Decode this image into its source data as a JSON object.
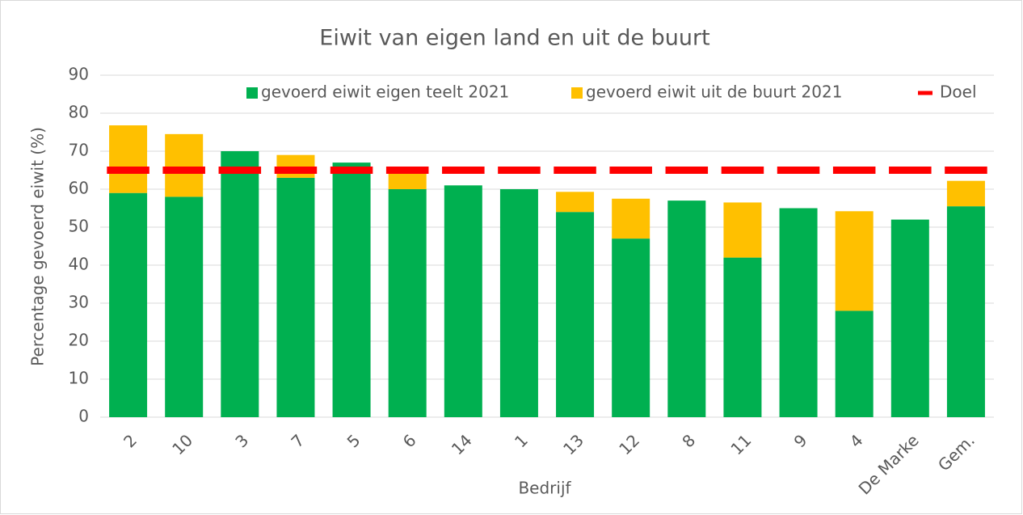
{
  "chart_data": {
    "type": "bar",
    "stacked": true,
    "title": "Eiwit van eigen land en uit de buurt",
    "x_label": "Bedrijf",
    "y_label": "Percentage gevoerd eiwit (%)",
    "categories": [
      "2",
      "10",
      "3",
      "7",
      "5",
      "6",
      "14",
      "1",
      "13",
      "12",
      "8",
      "11",
      "9",
      "4",
      "De Marke",
      "Gem."
    ],
    "series": [
      {
        "name": "gevoerd eiwit eigen teelt 2021",
        "color": "#00b050",
        "values": [
          59,
          58,
          70,
          63,
          67,
          60,
          61,
          60,
          54,
          47,
          57,
          42,
          55,
          28,
          52,
          55.5
        ]
      },
      {
        "name": "gevoerd eiwit uit de buurt 2021",
        "color": "#ffc000",
        "values": [
          17.8,
          16.5,
          0,
          6,
          0,
          4.5,
          0,
          0,
          5.3,
          10.5,
          0,
          14.5,
          0,
          26.2,
          0,
          6.7
        ]
      },
      {
        "name": "Doel",
        "color": "#ff0000",
        "type": "line",
        "dashed": true,
        "values": [
          65,
          65,
          65,
          65,
          65,
          65,
          65,
          65,
          65,
          65,
          65,
          65,
          65,
          65,
          65,
          65
        ]
      }
    ],
    "ylim": [
      0,
      90
    ],
    "yticks": [
      0,
      10,
      20,
      30,
      40,
      50,
      60,
      70,
      80,
      90
    ],
    "grid": true,
    "legend": "top"
  }
}
